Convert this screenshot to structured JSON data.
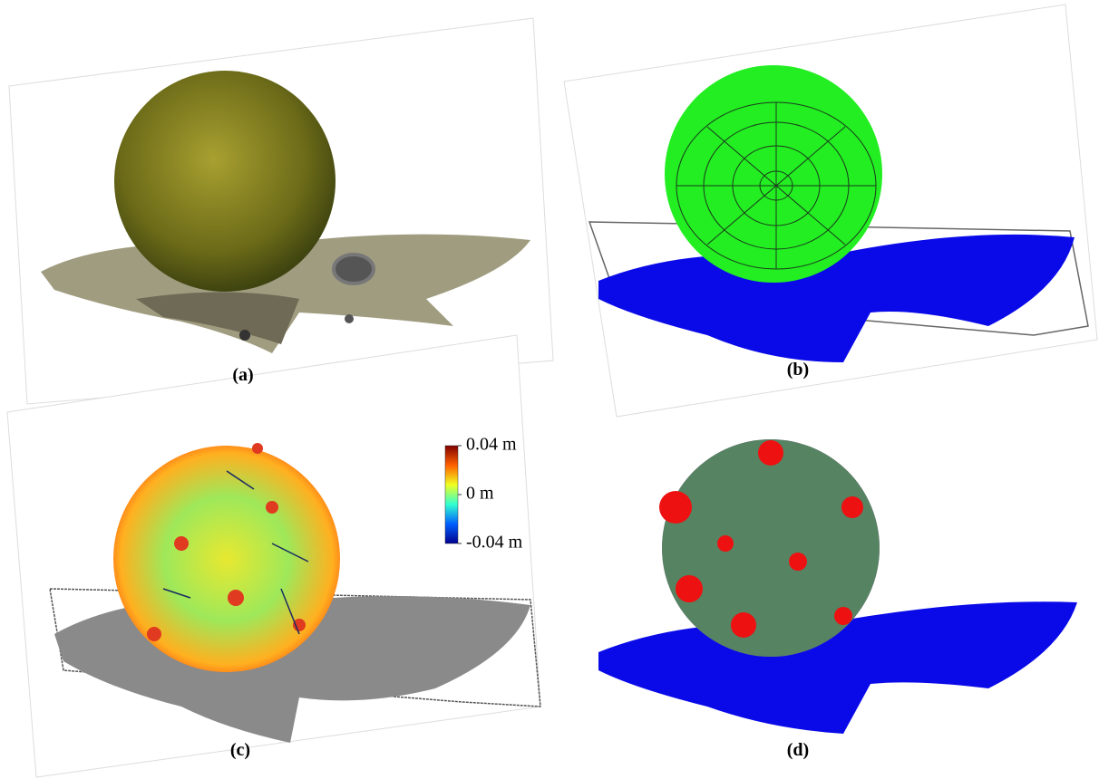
{
  "panels": [
    {
      "label": "(a)"
    },
    {
      "label": "(b)"
    },
    {
      "label": "(c)"
    },
    {
      "label": "(d)"
    }
  ],
  "colorbar": {
    "lim": [
      -0.04,
      0.04
    ],
    "ticks": [
      {
        "value": 0.04,
        "label": "0.04 m"
      },
      {
        "value": 0,
        "label": "0 m"
      },
      {
        "value": -0.04,
        "label": "-0.04 m"
      }
    ]
  }
}
